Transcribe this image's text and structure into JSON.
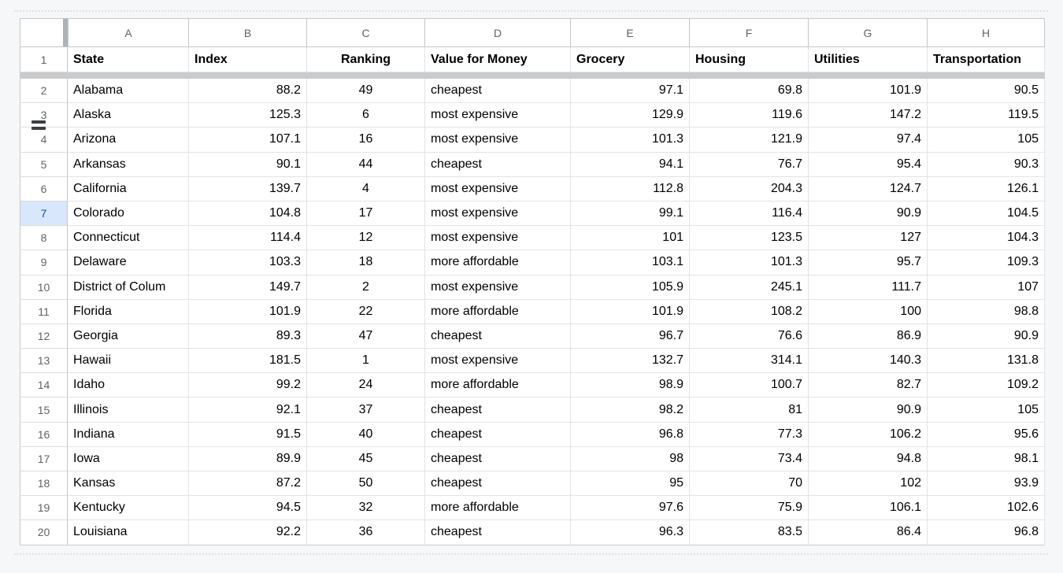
{
  "grid": {
    "column_letters": [
      "A",
      "B",
      "C",
      "D",
      "E",
      "F",
      "G",
      "H"
    ],
    "header_row": {
      "row_number": "1",
      "cells": [
        "State",
        "Index",
        "Ranking",
        "Value for Money",
        "Grocery",
        "Housing",
        "Utilities",
        "Transportation"
      ]
    },
    "rows": [
      {
        "row_number": "2",
        "cells": [
          "Alabama",
          "88.2",
          "49",
          "cheapest",
          "97.1",
          "69.8",
          "101.9",
          "90.5"
        ]
      },
      {
        "row_number": "3",
        "cells": [
          "Alaska",
          "125.3",
          "6",
          "most expensive",
          "129.9",
          "119.6",
          "147.2",
          "119.5"
        ]
      },
      {
        "row_number": "4",
        "cells": [
          "Arizona",
          "107.1",
          "16",
          "most expensive",
          "101.3",
          "121.9",
          "97.4",
          "105"
        ]
      },
      {
        "row_number": "5",
        "cells": [
          "Arkansas",
          "90.1",
          "44",
          "cheapest",
          "94.1",
          "76.7",
          "95.4",
          "90.3"
        ]
      },
      {
        "row_number": "6",
        "cells": [
          "California",
          "139.7",
          "4",
          "most expensive",
          "112.8",
          "204.3",
          "124.7",
          "126.1"
        ]
      },
      {
        "row_number": "7",
        "cells": [
          "Colorado",
          "104.8",
          "17",
          "most expensive",
          "99.1",
          "116.4",
          "90.9",
          "104.5"
        ],
        "selected": true
      },
      {
        "row_number": "8",
        "cells": [
          "Connecticut",
          "114.4",
          "12",
          "most expensive",
          "101",
          "123.5",
          "127",
          "104.3"
        ]
      },
      {
        "row_number": "9",
        "cells": [
          "Delaware",
          "103.3",
          "18",
          "more affordable",
          "103.1",
          "101.3",
          "95.7",
          "109.3"
        ]
      },
      {
        "row_number": "10",
        "cells": [
          "District of Colum",
          "149.7",
          "2",
          "most expensive",
          "105.9",
          "245.1",
          "111.7",
          "107"
        ]
      },
      {
        "row_number": "11",
        "cells": [
          "Florida",
          "101.9",
          "22",
          "more affordable",
          "101.9",
          "108.2",
          "100",
          "98.8"
        ]
      },
      {
        "row_number": "12",
        "cells": [
          "Georgia",
          "89.3",
          "47",
          "cheapest",
          "96.7",
          "76.6",
          "86.9",
          "90.9"
        ]
      },
      {
        "row_number": "13",
        "cells": [
          "Hawaii",
          "181.5",
          "1",
          "most expensive",
          "132.7",
          "314.1",
          "140.3",
          "131.8"
        ]
      },
      {
        "row_number": "14",
        "cells": [
          "Idaho",
          "99.2",
          "24",
          "more affordable",
          "98.9",
          "100.7",
          "82.7",
          "109.2"
        ]
      },
      {
        "row_number": "15",
        "cells": [
          "Illinois",
          "92.1",
          "37",
          "cheapest",
          "98.2",
          "81",
          "90.9",
          "105"
        ]
      },
      {
        "row_number": "16",
        "cells": [
          "Indiana",
          "91.5",
          "40",
          "cheapest",
          "96.8",
          "77.3",
          "106.2",
          "95.6"
        ]
      },
      {
        "row_number": "17",
        "cells": [
          "Iowa",
          "89.9",
          "45",
          "cheapest",
          "98",
          "73.4",
          "94.8",
          "98.1"
        ]
      },
      {
        "row_number": "18",
        "cells": [
          "Kansas",
          "87.2",
          "50",
          "cheapest",
          "95",
          "70",
          "102",
          "93.9"
        ]
      },
      {
        "row_number": "19",
        "cells": [
          "Kentucky",
          "94.5",
          "32",
          "more affordable",
          "97.6",
          "75.9",
          "106.1",
          "102.6"
        ]
      },
      {
        "row_number": "20",
        "cells": [
          "Louisiana",
          "92.2",
          "36",
          "cheapest",
          "96.3",
          "83.5",
          "86.4",
          "96.8"
        ]
      }
    ],
    "selected_row_number": "7",
    "frozen_rows_after_row": "1",
    "row_resize_indicator_between": [
      "3",
      "4"
    ]
  },
  "colors": {
    "canvas_bg": "#f6f7f8",
    "selected_row_header_bg": "#d9e7fd",
    "selected_row_header_text": "#174ea6",
    "header_text": "#5f6368",
    "cell_text": "#000000",
    "freeze_bar": "#c9cbcd",
    "grid_line": "#e1e3e4",
    "header_line": "#c3c7cb",
    "resize_indicator": "#3c4043"
  }
}
